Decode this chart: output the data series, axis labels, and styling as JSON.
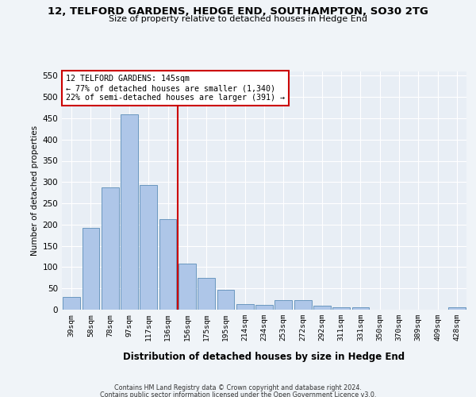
{
  "title_line1": "12, TELFORD GARDENS, HEDGE END, SOUTHAMPTON, SO30 2TG",
  "title_line2": "Size of property relative to detached houses in Hedge End",
  "xlabel": "Distribution of detached houses by size in Hedge End",
  "ylabel": "Number of detached properties",
  "bar_labels": [
    "39sqm",
    "58sqm",
    "78sqm",
    "97sqm",
    "117sqm",
    "136sqm",
    "156sqm",
    "175sqm",
    "195sqm",
    "214sqm",
    "234sqm",
    "253sqm",
    "272sqm",
    "292sqm",
    "311sqm",
    "331sqm",
    "350sqm",
    "370sqm",
    "389sqm",
    "409sqm",
    "428sqm"
  ],
  "bar_values": [
    30,
    192,
    287,
    460,
    293,
    213,
    109,
    75,
    46,
    14,
    12,
    22,
    22,
    9,
    5,
    5,
    0,
    0,
    0,
    0,
    5
  ],
  "bar_color": "#aec6e8",
  "bar_edge_color": "#5b8db8",
  "vline_color": "#cc0000",
  "annotation_text": "12 TELFORD GARDENS: 145sqm\n← 77% of detached houses are smaller (1,340)\n22% of semi-detached houses are larger (391) →",
  "annotation_box_color": "#ffffff",
  "annotation_box_edge": "#cc0000",
  "ylim": [
    0,
    560
  ],
  "yticks": [
    0,
    50,
    100,
    150,
    200,
    250,
    300,
    350,
    400,
    450,
    500,
    550
  ],
  "background_color": "#e8eef5",
  "grid_color": "#ffffff",
  "fig_background": "#f0f4f8",
  "footer_line1": "Contains HM Land Registry data © Crown copyright and database right 2024.",
  "footer_line2": "Contains public sector information licensed under the Open Government Licence v3.0."
}
